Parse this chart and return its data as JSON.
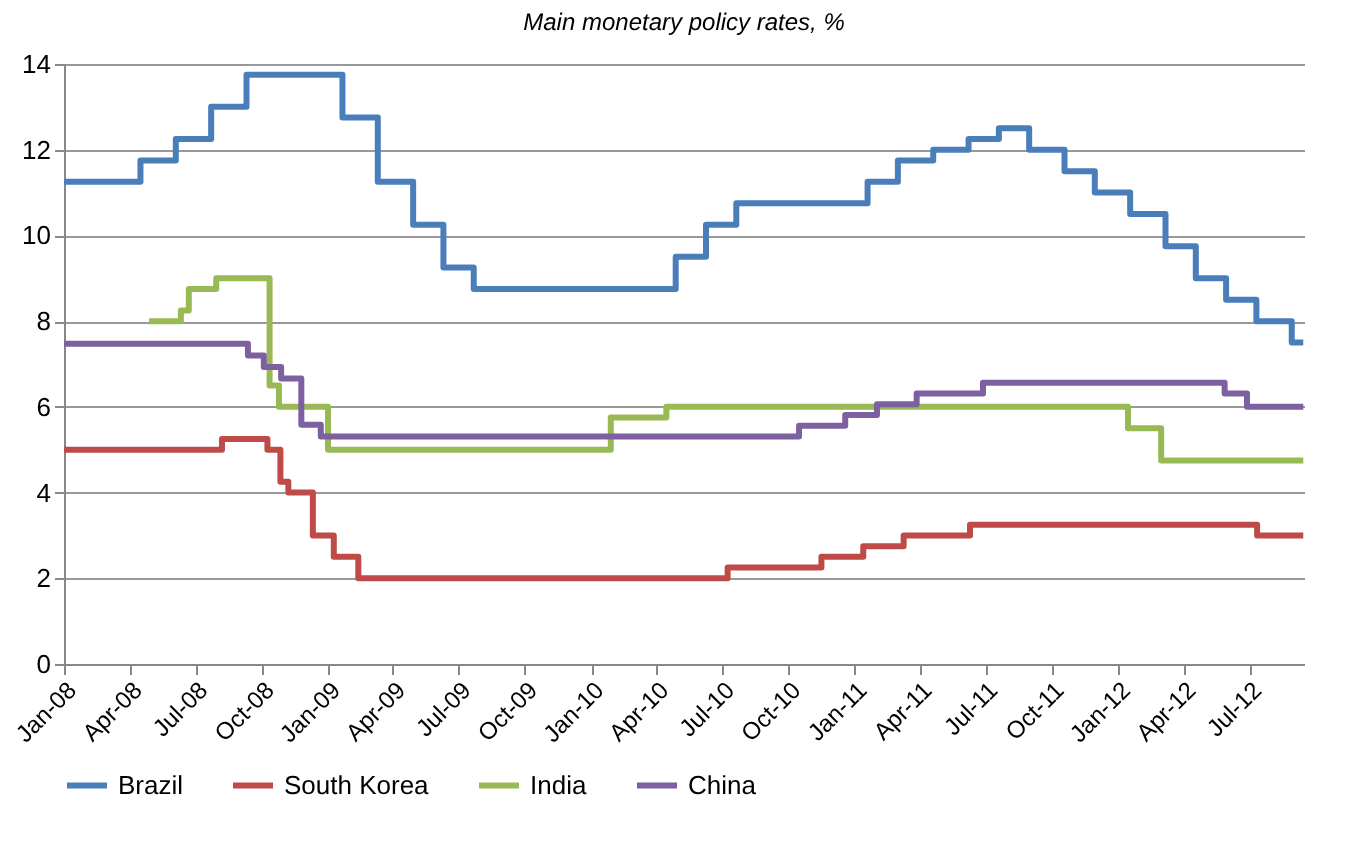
{
  "chart_data": {
    "type": "step",
    "title": "Main monetary  policy rates, %",
    "xlim": [
      "2008-01-01",
      "2012-09-15"
    ],
    "xticks": [
      {
        "value": "2008-01-01",
        "label": "Jan-08"
      },
      {
        "value": "2008-04-01",
        "label": "Apr-08"
      },
      {
        "value": "2008-07-01",
        "label": "Jul-08"
      },
      {
        "value": "2008-10-01",
        "label": "Oct-08"
      },
      {
        "value": "2009-01-01",
        "label": "Jan-09"
      },
      {
        "value": "2009-04-01",
        "label": "Apr-09"
      },
      {
        "value": "2009-07-01",
        "label": "Jul-09"
      },
      {
        "value": "2009-10-01",
        "label": "Oct-09"
      },
      {
        "value": "2010-01-01",
        "label": "Jan-10"
      },
      {
        "value": "2010-04-01",
        "label": "Apr-10"
      },
      {
        "value": "2010-07-01",
        "label": "Jul-10"
      },
      {
        "value": "2010-10-01",
        "label": "Oct-10"
      },
      {
        "value": "2011-01-01",
        "label": "Jan-11"
      },
      {
        "value": "2011-04-01",
        "label": "Apr-11"
      },
      {
        "value": "2011-07-01",
        "label": "Jul-11"
      },
      {
        "value": "2011-10-01",
        "label": "Oct-11"
      },
      {
        "value": "2012-01-01",
        "label": "Jan-12"
      },
      {
        "value": "2012-04-01",
        "label": "Apr-12"
      },
      {
        "value": "2012-07-01",
        "label": "Jul-12"
      }
    ],
    "ylim": [
      0,
      14
    ],
    "yticks": [
      0,
      2,
      4,
      6,
      8,
      10,
      12,
      14
    ],
    "grid": "y",
    "legend": "bottom",
    "line_style": "solid",
    "marker": "none",
    "series": [
      {
        "name": "Brazil",
        "color": "#4a7ebb",
        "x": [
          "2008-01-01",
          "2008-04-16",
          "2008-06-04",
          "2008-07-23",
          "2008-09-10",
          "2009-01-21",
          "2009-03-11",
          "2009-04-29",
          "2009-06-10",
          "2009-07-22",
          "2010-04-28",
          "2010-06-09",
          "2010-07-21",
          "2011-01-19",
          "2011-03-02",
          "2011-04-20",
          "2011-06-08",
          "2011-07-20",
          "2011-08-31",
          "2011-10-19",
          "2011-11-30",
          "2012-01-18",
          "2012-03-07",
          "2012-04-18",
          "2012-05-30",
          "2012-07-11",
          "2012-08-29",
          "2012-09-14"
        ],
        "values": [
          11.25,
          11.75,
          12.25,
          13.0,
          13.75,
          12.75,
          11.25,
          10.25,
          9.25,
          8.75,
          9.5,
          10.25,
          10.75,
          11.25,
          11.75,
          12.0,
          12.25,
          12.5,
          12.0,
          11.5,
          11.0,
          10.5,
          9.75,
          9.0,
          8.5,
          8.0,
          7.5,
          7.5
        ]
      },
      {
        "name": "South Korea",
        "color": "#be4b48",
        "x": [
          "2008-01-01",
          "2008-08-07",
          "2008-10-09",
          "2008-10-27",
          "2008-11-07",
          "2008-12-11",
          "2009-01-09",
          "2009-02-12",
          "2010-07-09",
          "2010-11-16",
          "2011-01-13",
          "2011-03-10",
          "2011-06-10",
          "2012-07-12",
          "2012-09-14"
        ],
        "values": [
          5.0,
          5.25,
          5.0,
          4.25,
          4.0,
          3.0,
          2.5,
          2.0,
          2.25,
          2.5,
          2.75,
          3.0,
          3.25,
          3.0,
          3.0
        ]
      },
      {
        "name": "India",
        "color": "#98b954",
        "x": [
          "2008-04-28",
          "2008-06-11",
          "2008-06-22",
          "2008-07-30",
          "2008-10-12",
          "2008-10-25",
          "2009-01-01",
          "2010-01-28",
          "2010-04-15",
          "2012-01-15",
          "2012-03-01",
          "2012-09-14"
        ],
        "values": [
          8.0,
          8.25,
          8.75,
          9.0,
          6.5,
          6.0,
          5.0,
          5.75,
          6.0,
          5.5,
          4.75,
          4.75
        ]
      },
      {
        "name": "China",
        "color": "#7d60a0",
        "x": [
          "2008-01-01",
          "2008-09-12",
          "2008-10-04",
          "2008-10-28",
          "2008-11-25",
          "2008-12-22",
          "2010-10-16",
          "2010-12-19",
          "2011-02-01",
          "2011-03-28",
          "2011-06-28",
          "2012-05-28",
          "2012-06-28",
          "2012-09-14"
        ],
        "values": [
          7.47,
          7.2,
          6.93,
          6.66,
          5.58,
          5.31,
          5.56,
          5.81,
          6.06,
          6.31,
          6.56,
          6.31,
          6.0,
          6.0
        ]
      }
    ]
  }
}
